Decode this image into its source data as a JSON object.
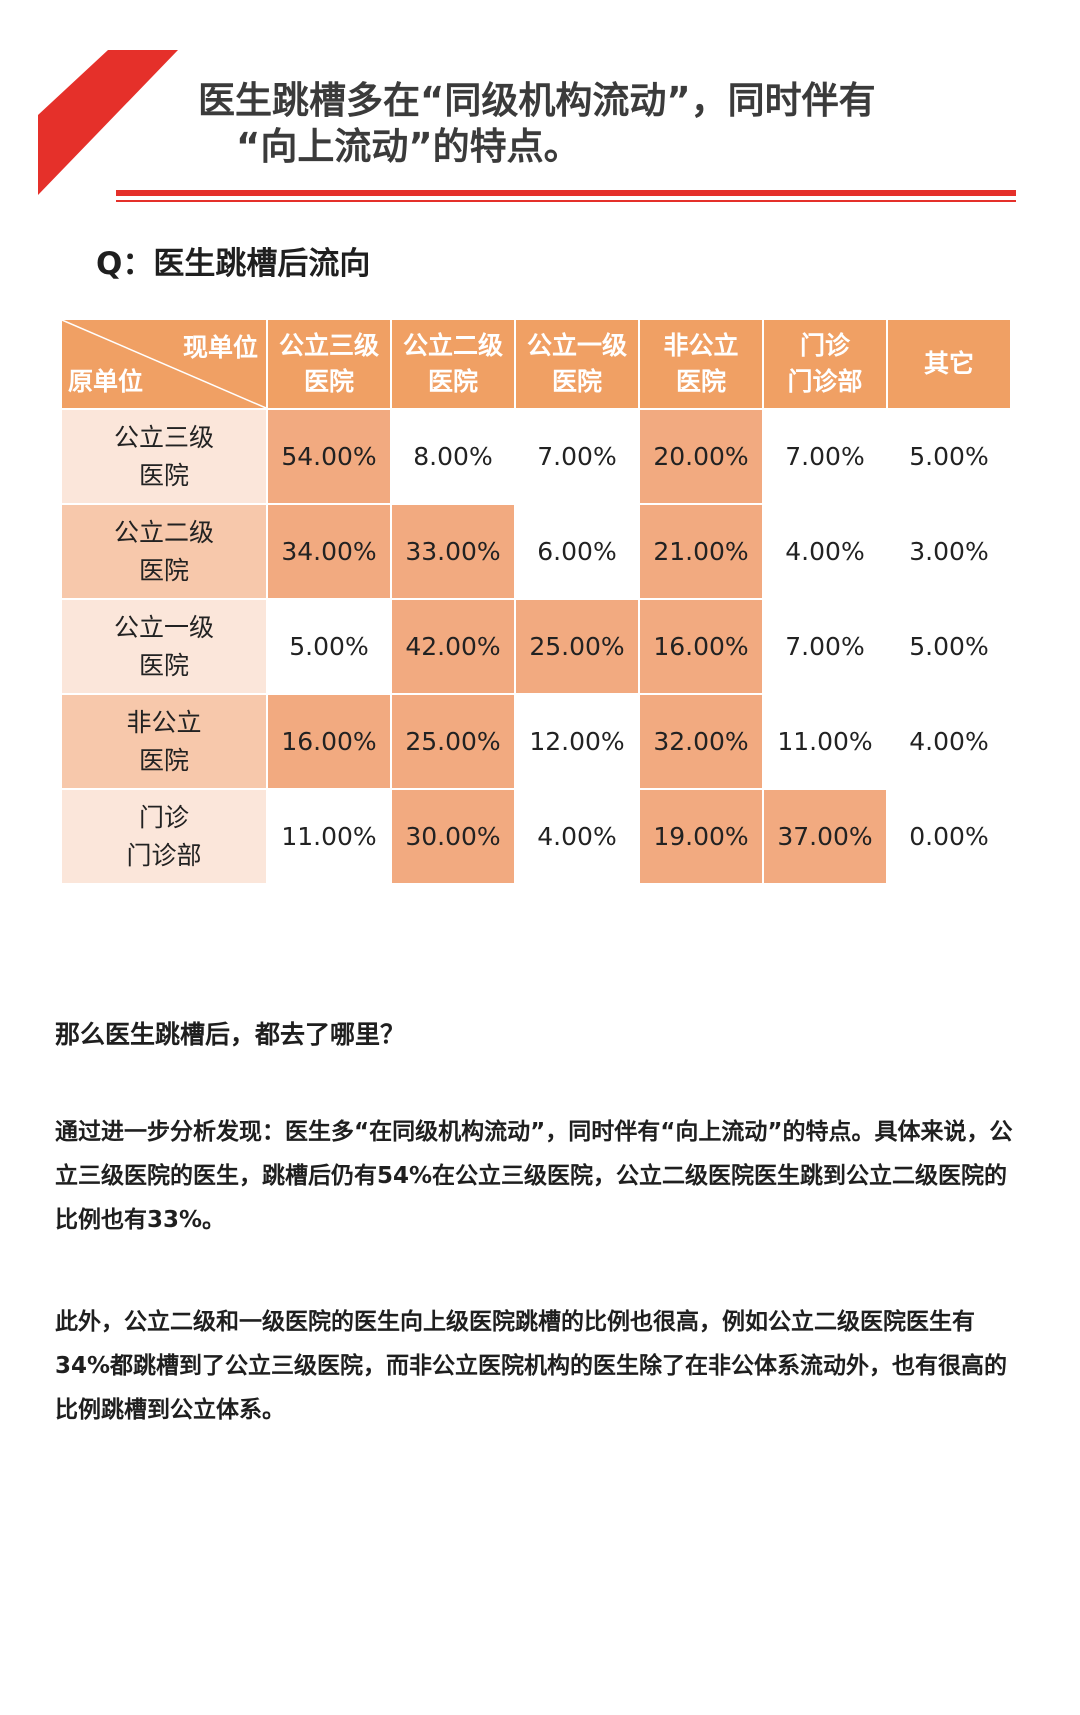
{
  "title": {
    "line1": "医生跳槽多在“同级机构流动”，同时伴有",
    "line2": "“向上流动”的特点。"
  },
  "colors": {
    "accent": "#e5302a",
    "header": "#f0a064",
    "cell_dark": "#f2aa80",
    "cell_light": "#fbe6da"
  },
  "chart_data": {
    "type": "table",
    "title": "Q：医生跳槽后流向",
    "corner": {
      "column_axis": "现单位",
      "row_axis": "原单位"
    },
    "columns": [
      {
        "line1": "公立三级",
        "line2": "医院"
      },
      {
        "line1": "公立二级",
        "line2": "医院"
      },
      {
        "line1": "公立一级",
        "line2": "医院"
      },
      {
        "line1": "非公立",
        "line2": "医院"
      },
      {
        "line1": "门诊",
        "line2": "门诊部"
      },
      {
        "line1": "其它",
        "line2": ""
      }
    ],
    "rows": [
      {
        "line1": "公立三级",
        "line2": "医院",
        "values": [
          "54.00%",
          "8.00%",
          "7.00%",
          "20.00%",
          "7.00%",
          "5.00%"
        ],
        "highlight": [
          true,
          false,
          false,
          true,
          false,
          false
        ]
      },
      {
        "line1": "公立二级",
        "line2": "医院",
        "values": [
          "34.00%",
          "33.00%",
          "6.00%",
          "21.00%",
          "4.00%",
          "3.00%"
        ],
        "highlight": [
          true,
          true,
          false,
          true,
          false,
          false
        ]
      },
      {
        "line1": "公立一级",
        "line2": "医院",
        "values": [
          "5.00%",
          "42.00%",
          "25.00%",
          "16.00%",
          "7.00%",
          "5.00%"
        ],
        "highlight": [
          false,
          true,
          true,
          true,
          false,
          false
        ]
      },
      {
        "line1": "非公立",
        "line2": "医院",
        "values": [
          "16.00%",
          "25.00%",
          "12.00%",
          "32.00%",
          "11.00%",
          "4.00%"
        ],
        "highlight": [
          true,
          true,
          false,
          true,
          false,
          false
        ]
      },
      {
        "line1": "门诊",
        "line2": "门诊部",
        "values": [
          "11.00%",
          "30.00%",
          "4.00%",
          "19.00%",
          "37.00%",
          "0.00%"
        ],
        "highlight": [
          false,
          true,
          false,
          true,
          true,
          false
        ]
      }
    ]
  },
  "text": {
    "lead": "那么医生跳槽后，都去了哪里？",
    "p1": "通过进一步分析发现：医生多“在同级机构流动”，同时伴有“向上流动”的特点。具体来说，公立三级医院的医生，跳槽后仍有54%在公立三级医院，公立二级医院医生跳到公立二级医院的比例也有33%。",
    "p2": "此外，公立二级和一级医院的医生向上级医院跳槽的比例也很高，例如公立二级医院医生有34%都跳槽到了公立三级医院，而非公立医院机构的医生除了在非公体系流动外，也有很高的比例跳槽到公立体系。"
  }
}
